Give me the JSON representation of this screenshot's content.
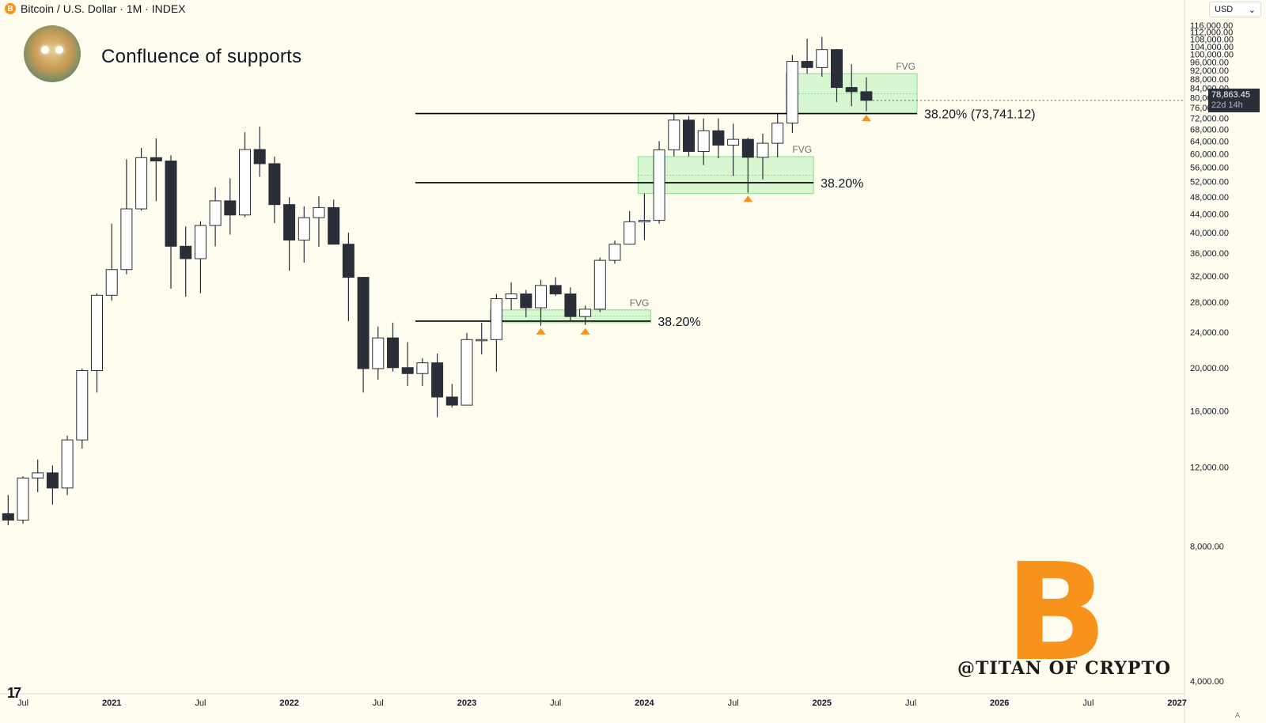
{
  "header": {
    "symbol_icon": "B",
    "text": "Bitcoin / U.S. Dollar · 1M · INDEX"
  },
  "title": "Confluence of supports",
  "currency": {
    "label": "USD",
    "chevron": "⌄"
  },
  "watermark": "@TITAN OF CRYPTO",
  "btc_logo": "B",
  "tv_logo": "17",
  "auto_label": "A",
  "price_tag": {
    "price": "78,863.45",
    "countdown": "22d 14h"
  },
  "icons": {
    "avatar": "avatar-icon",
    "bitcoin": "bitcoin-logo-icon",
    "tradingview": "tradingview-logo-icon"
  },
  "colors": {
    "background": "#fffcf0",
    "up_body": "#ffffff",
    "down_body": "#2a2e39",
    "fvg": "#c8f5c4",
    "fvg_border": "#8ed88a",
    "marker": "#f7931a",
    "level": "#000000"
  },
  "chart_data": {
    "type": "candlestick",
    "title": "Confluence of supports",
    "y_axis": {
      "scale": "log",
      "ticks": [
        4000,
        8000,
        12000,
        16000,
        20000,
        24000,
        28000,
        32000,
        36000,
        40000,
        44000,
        48000,
        52000,
        56000,
        60000,
        64000,
        68000,
        72000,
        76000,
        80000,
        84000,
        88000,
        92000,
        96000,
        100000,
        104000,
        108000,
        112000,
        116000
      ],
      "tick_labels": [
        "4,000.00",
        "8,000.00",
        "12,000.00",
        "16,000.00",
        "20,000.00",
        "24,000.00",
        "28,000.00",
        "32,000.00",
        "36,000.00",
        "40,000.00",
        "44,000.00",
        "48,000.00",
        "52,000.00",
        "56,000.00",
        "60,000.00",
        "64,000.00",
        "68,000.00",
        "72,000.00",
        "76,000.00",
        "80,000.00",
        "84,000.00",
        "88,000.00",
        "92,000.00",
        "96,000.00",
        "100,000.00",
        "104,000.00",
        "108,000.00",
        "112,000.00",
        "116,000.00"
      ]
    },
    "x_axis": {
      "ticks": [
        "2020-07",
        "2021-01",
        "2021-07",
        "2022-01",
        "2022-07",
        "2023-01",
        "2023-07",
        "2024-01",
        "2024-07",
        "2025-01",
        "2025-07",
        "2026-01",
        "2026-07",
        "2027-01"
      ],
      "tick_labels": [
        "Jul",
        "2021",
        "Jul",
        "2022",
        "Jul",
        "2023",
        "Jul",
        "2024",
        "Jul",
        "2025",
        "Jul",
        "2026",
        "Jul",
        "2027"
      ],
      "bold": [
        false,
        true,
        false,
        true,
        false,
        true,
        false,
        true,
        false,
        true,
        false,
        true,
        false,
        true
      ]
    },
    "candles": [
      {
        "date": "2020-06",
        "o": 9450,
        "h": 10400,
        "l": 8900,
        "c": 9140
      },
      {
        "date": "2020-07",
        "o": 9140,
        "h": 11450,
        "l": 8980,
        "c": 11350
      },
      {
        "date": "2020-08",
        "o": 11350,
        "h": 12480,
        "l": 10550,
        "c": 11650
      },
      {
        "date": "2020-09",
        "o": 11650,
        "h": 12100,
        "l": 9900,
        "c": 10780
      },
      {
        "date": "2020-10",
        "o": 10780,
        "h": 14100,
        "l": 10400,
        "c": 13800
      },
      {
        "date": "2020-11",
        "o": 13800,
        "h": 19900,
        "l": 13200,
        "c": 19700
      },
      {
        "date": "2020-12",
        "o": 19700,
        "h": 29300,
        "l": 17600,
        "c": 29000
      },
      {
        "date": "2021-01",
        "o": 29000,
        "h": 41900,
        "l": 28200,
        "c": 33100
      },
      {
        "date": "2021-02",
        "o": 33100,
        "h": 58300,
        "l": 32300,
        "c": 45200
      },
      {
        "date": "2021-03",
        "o": 45200,
        "h": 61800,
        "l": 44800,
        "c": 58800
      },
      {
        "date": "2021-04",
        "o": 58800,
        "h": 64900,
        "l": 47000,
        "c": 57800
      },
      {
        "date": "2021-05",
        "o": 57800,
        "h": 59500,
        "l": 30000,
        "c": 37300
      },
      {
        "date": "2021-06",
        "o": 37300,
        "h": 41300,
        "l": 28800,
        "c": 35000
      },
      {
        "date": "2021-07",
        "o": 35000,
        "h": 42400,
        "l": 29300,
        "c": 41500
      },
      {
        "date": "2021-08",
        "o": 41500,
        "h": 50500,
        "l": 37300,
        "c": 47100
      },
      {
        "date": "2021-09",
        "o": 47100,
        "h": 52900,
        "l": 39600,
        "c": 43800
      },
      {
        "date": "2021-10",
        "o": 43800,
        "h": 67000,
        "l": 43300,
        "c": 61300
      },
      {
        "date": "2021-11",
        "o": 61300,
        "h": 69000,
        "l": 53300,
        "c": 57000
      },
      {
        "date": "2021-12",
        "o": 57000,
        "h": 59100,
        "l": 42000,
        "c": 46200
      },
      {
        "date": "2022-01",
        "o": 46200,
        "h": 48000,
        "l": 32900,
        "c": 38500
      },
      {
        "date": "2022-02",
        "o": 38500,
        "h": 45800,
        "l": 34300,
        "c": 43200
      },
      {
        "date": "2022-03",
        "o": 43200,
        "h": 48200,
        "l": 37200,
        "c": 45500
      },
      {
        "date": "2022-04",
        "o": 45500,
        "h": 47400,
        "l": 37600,
        "c": 37700
      },
      {
        "date": "2022-05",
        "o": 37700,
        "h": 40000,
        "l": 25400,
        "c": 31800
      },
      {
        "date": "2022-06",
        "o": 31800,
        "h": 31900,
        "l": 17600,
        "c": 19900
      },
      {
        "date": "2022-07",
        "o": 19900,
        "h": 24700,
        "l": 18800,
        "c": 23300
      },
      {
        "date": "2022-08",
        "o": 23300,
        "h": 25200,
        "l": 19600,
        "c": 20000
      },
      {
        "date": "2022-09",
        "o": 20000,
        "h": 22800,
        "l": 18200,
        "c": 19400
      },
      {
        "date": "2022-10",
        "o": 19400,
        "h": 21000,
        "l": 18200,
        "c": 20500
      },
      {
        "date": "2022-11",
        "o": 20500,
        "h": 21500,
        "l": 15500,
        "c": 17200
      },
      {
        "date": "2022-12",
        "o": 17200,
        "h": 18400,
        "l": 16300,
        "c": 16500
      },
      {
        "date": "2023-01",
        "o": 16500,
        "h": 23900,
        "l": 16500,
        "c": 23100
      },
      {
        "date": "2023-02",
        "o": 23100,
        "h": 25200,
        "l": 21400,
        "c": 23100
      },
      {
        "date": "2023-03",
        "o": 23100,
        "h": 29200,
        "l": 19600,
        "c": 28500
      },
      {
        "date": "2023-04",
        "o": 28500,
        "h": 31000,
        "l": 26900,
        "c": 29200
      },
      {
        "date": "2023-05",
        "o": 29200,
        "h": 29800,
        "l": 25900,
        "c": 27200
      },
      {
        "date": "2023-06",
        "o": 27200,
        "h": 31400,
        "l": 24800,
        "c": 30500
      },
      {
        "date": "2023-07",
        "o": 30500,
        "h": 31800,
        "l": 28900,
        "c": 29200
      },
      {
        "date": "2023-08",
        "o": 29200,
        "h": 30200,
        "l": 25300,
        "c": 26000
      },
      {
        "date": "2023-09",
        "o": 26000,
        "h": 27500,
        "l": 24900,
        "c": 27000
      },
      {
        "date": "2023-10",
        "o": 27000,
        "h": 35200,
        "l": 26600,
        "c": 34700
      },
      {
        "date": "2023-11",
        "o": 34700,
        "h": 38400,
        "l": 34100,
        "c": 37700
      },
      {
        "date": "2023-12",
        "o": 37700,
        "h": 44700,
        "l": 37600,
        "c": 42300
      },
      {
        "date": "2024-01",
        "o": 42300,
        "h": 48900,
        "l": 38500,
        "c": 42600
      },
      {
        "date": "2024-02",
        "o": 42600,
        "h": 64000,
        "l": 41900,
        "c": 61200
      },
      {
        "date": "2024-03",
        "o": 61200,
        "h": 73800,
        "l": 59200,
        "c": 71300
      },
      {
        "date": "2024-04",
        "o": 71300,
        "h": 72800,
        "l": 59200,
        "c": 60700
      },
      {
        "date": "2024-05",
        "o": 60700,
        "h": 71900,
        "l": 56600,
        "c": 67500
      },
      {
        "date": "2024-06",
        "o": 67500,
        "h": 71900,
        "l": 58600,
        "c": 62700
      },
      {
        "date": "2024-07",
        "o": 62700,
        "h": 70000,
        "l": 53500,
        "c": 64600
      },
      {
        "date": "2024-08",
        "o": 64600,
        "h": 65100,
        "l": 49100,
        "c": 58900
      },
      {
        "date": "2024-09",
        "o": 58900,
        "h": 66500,
        "l": 52600,
        "c": 63300
      },
      {
        "date": "2024-10",
        "o": 63300,
        "h": 73600,
        "l": 58900,
        "c": 70200
      },
      {
        "date": "2024-11",
        "o": 70200,
        "h": 99600,
        "l": 66800,
        "c": 96400
      },
      {
        "date": "2024-12",
        "o": 96400,
        "h": 108300,
        "l": 90500,
        "c": 93400
      },
      {
        "date": "2025-01",
        "o": 93400,
        "h": 109300,
        "l": 89100,
        "c": 102400
      },
      {
        "date": "2025-02",
        "o": 102400,
        "h": 102800,
        "l": 78200,
        "c": 84300
      },
      {
        "date": "2025-03",
        "o": 84300,
        "h": 95000,
        "l": 76600,
        "c": 82500
      },
      {
        "date": "2025-04",
        "o": 82500,
        "h": 88800,
        "l": 74600,
        "c": 78900
      }
    ],
    "fvg_zones": [
      {
        "label": "FVG",
        "start": "2023-03",
        "end": "2024-01",
        "top": 26900,
        "bottom": 25200
      },
      {
        "label": "FVG",
        "start": "2024-01",
        "end": "2024-12",
        "top": 59100,
        "bottom": 48900
      },
      {
        "label": "FVG",
        "start": "2024-11",
        "end": "2025-07",
        "top": 90500,
        "bottom": 73600
      }
    ],
    "levels": [
      {
        "label": "38.20%",
        "start": "2022-10",
        "end": "2024-01",
        "price": 25400
      },
      {
        "label": "38.20%",
        "start": "2022-10",
        "end": "2024-12",
        "price": 51700
      },
      {
        "label": "38.20% (73,741.12)",
        "start": "2022-10",
        "end": "2025-07",
        "price": 73741.12
      }
    ],
    "markers": [
      {
        "date": "2023-06",
        "price": 24100
      },
      {
        "date": "2023-09",
        "price": 24100
      },
      {
        "date": "2024-08",
        "price": 47600
      },
      {
        "date": "2025-04",
        "price": 72100
      }
    ],
    "last_price": 78863.45
  }
}
